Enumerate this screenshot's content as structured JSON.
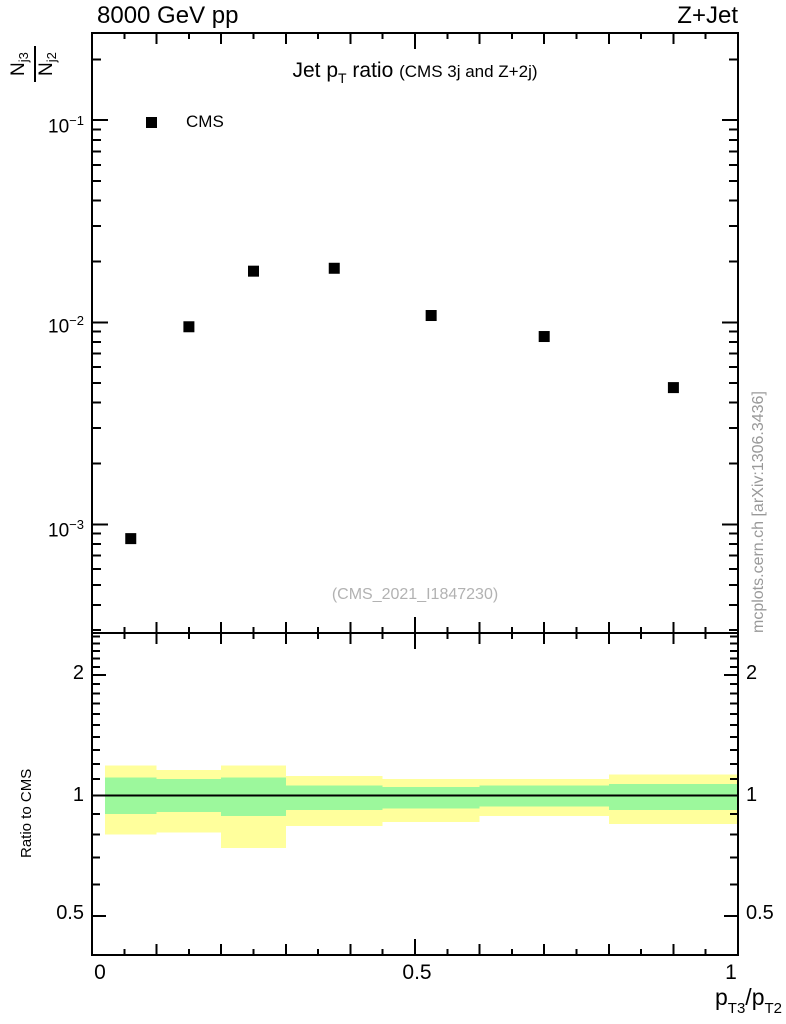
{
  "header": {
    "energy": "8000 GeV pp",
    "process": "Z+Jet"
  },
  "top_panel": {
    "title": {
      "prefix": "Jet p",
      "sub": "T",
      "middle": " ratio ",
      "paren": "(CMS 3j and Z+2j)"
    },
    "legend": {
      "label": "CMS"
    },
    "watermark": "(CMS_2021_I1847230)",
    "ylabel": {
      "num": "N",
      "num_sub": "j3",
      "den": "N",
      "den_sub": "j2"
    },
    "yticks": [
      {
        "m": "10",
        "e": "−1"
      },
      {
        "m": "10",
        "e": "−2"
      },
      {
        "m": "10",
        "e": "−3"
      }
    ]
  },
  "ratio_panel": {
    "ylabel": "Ratio to CMS",
    "yticks_left": [
      "2",
      "1",
      "0.5"
    ],
    "yticks_right": [
      "2",
      "1",
      "0.5"
    ]
  },
  "x_axis": {
    "ticks": [
      "0",
      "0.5",
      "1"
    ],
    "title": {
      "p1": "p",
      "s1": "T3",
      "slash": "/",
      "p2": "p",
      "s2": "T2"
    }
  },
  "side_note": "mcplots.cern.ch [arXiv:1306.3436]",
  "colors": {
    "band_yellow": "#ffff9c",
    "band_green": "#9cf89c",
    "marker": "#000000",
    "watermark": "#b2b2b2",
    "side_note": "#999999",
    "axis": "#000000"
  },
  "chart_data": {
    "type": "scatter",
    "title": "Jet pT ratio (CMS 3j and Z+2j)",
    "header_left": "8000 GeV pp",
    "header_right": "Z+Jet",
    "xlabel": "pT3/pT2",
    "top": {
      "ylabel": "Nj3/Nj2",
      "xlim": [
        0,
        1
      ],
      "ylog": true,
      "ylim": [
        0.00029,
        0.27
      ],
      "yticks_labeled": [
        0.1,
        0.01,
        0.001
      ],
      "grid": false,
      "legend_position": "top-left",
      "series": [
        {
          "name": "CMS",
          "marker": "filled-square",
          "color": "#000000",
          "x": [
            0.06,
            0.15,
            0.25,
            0.375,
            0.525,
            0.7,
            0.9
          ],
          "y": [
            0.00085,
            0.0095,
            0.0179,
            0.0185,
            0.0108,
            0.0085,
            0.00475
          ]
        }
      ]
    },
    "ratio": {
      "ylabel": "Ratio to CMS",
      "ylog": true,
      "ylim": [
        0.4,
        2.55
      ],
      "yticks_labeled": [
        2,
        1,
        0.5
      ],
      "reference_line": 1.0,
      "bin_edges": [
        0.02,
        0.1,
        0.2,
        0.3,
        0.45,
        0.6,
        0.8,
        1.0
      ],
      "bands": [
        {
          "name": "total-uncertainty",
          "color": "#ffff9c",
          "lo": [
            0.8,
            0.81,
            0.74,
            0.84,
            0.86,
            0.89,
            0.85
          ],
          "hi": [
            1.19,
            1.16,
            1.19,
            1.12,
            1.1,
            1.1,
            1.13
          ]
        },
        {
          "name": "stat-uncertainty",
          "color": "#9cf89c",
          "lo": [
            0.9,
            0.91,
            0.89,
            0.92,
            0.93,
            0.94,
            0.92
          ],
          "hi": [
            1.11,
            1.1,
            1.11,
            1.06,
            1.05,
            1.06,
            1.07
          ]
        }
      ]
    },
    "xticks_labeled": [
      0,
      0.5,
      1
    ],
    "xticks_minor_step": 0.05
  }
}
